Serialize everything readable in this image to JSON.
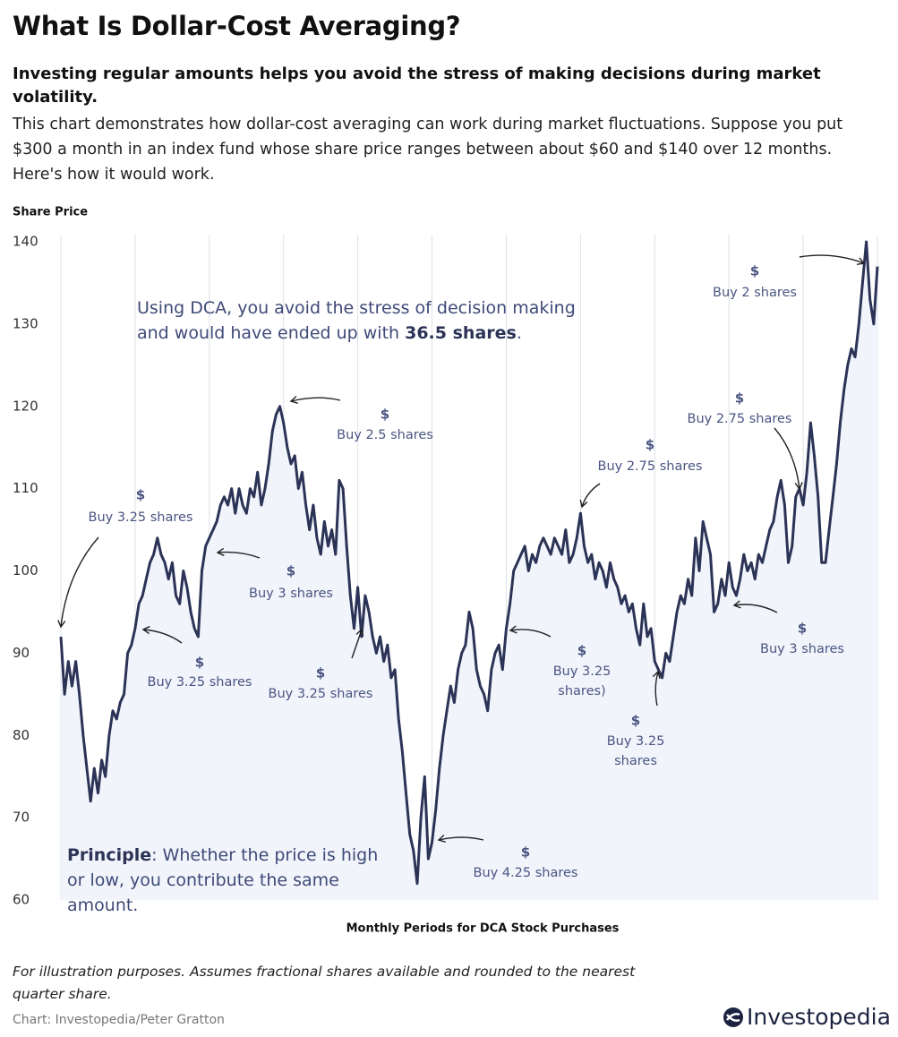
{
  "chart_data": {
    "type": "line",
    "title": "What Is Dollar-Cost Averaging?",
    "subtitle": "Investing regular amounts helps you avoid the stress of making decisions during market volatility.",
    "description": "This chart demonstrates how dollar-cost averaging can work during market fluctuations. Suppose you put $300 a month in an index fund whose share price ranges between about $60 and $140 over 12 months. Here's how it would work.",
    "y_label": "Share Price",
    "x_label": "Monthly Periods for DCA Stock Purchases",
    "note": "For illustration purposes. Assumes fractional shares available and rounded to the nearest quarter share.",
    "credit": "Chart: Investopedia/Peter Gratton",
    "brand": "Investopedia",
    "grid": "x",
    "xlim": [
      0,
      220
    ],
    "xticks": [
      0,
      20,
      40,
      60,
      80,
      100,
      120,
      140,
      160,
      180,
      200,
      220
    ],
    "ylim": [
      60,
      140
    ],
    "yticks": [
      60,
      70,
      80,
      90,
      100,
      110,
      120,
      130,
      140
    ],
    "x": [
      0,
      1,
      2,
      3,
      4,
      5,
      6,
      7,
      8,
      9,
      10,
      11,
      12,
      13,
      14,
      15,
      16,
      17,
      18,
      19,
      20,
      21,
      22,
      23,
      24,
      25,
      26,
      27,
      28,
      29,
      30,
      31,
      32,
      33,
      34,
      35,
      36,
      37,
      38,
      39,
      40,
      41,
      42,
      43,
      44,
      45,
      46,
      47,
      48,
      49,
      50,
      51,
      52,
      53,
      54,
      55,
      56,
      57,
      58,
      59,
      60,
      61,
      62,
      63,
      64,
      65,
      66,
      67,
      68,
      69,
      70,
      71,
      72,
      73,
      74,
      75,
      76,
      77,
      78,
      79,
      80,
      81,
      82,
      83,
      84,
      85,
      86,
      87,
      88,
      89,
      90,
      91,
      92,
      93,
      94,
      95,
      96,
      97,
      98,
      99,
      100,
      101,
      102,
      103,
      104,
      105,
      106,
      107,
      108,
      109,
      110,
      111,
      112,
      113,
      114,
      115,
      116,
      117,
      118,
      119,
      120,
      121,
      122,
      123,
      124,
      125,
      126,
      127,
      128,
      129,
      130,
      131,
      132,
      133,
      134,
      135,
      136,
      137,
      138,
      139,
      140,
      141,
      142,
      143,
      144,
      145,
      146,
      147,
      148,
      149,
      150,
      151,
      152,
      153,
      154,
      155,
      156,
      157,
      158,
      159,
      160,
      161,
      162,
      163,
      164,
      165,
      166,
      167,
      168,
      169,
      170,
      171,
      172,
      173,
      174,
      175,
      176,
      177,
      178,
      179,
      180,
      181,
      182,
      183,
      184,
      185,
      186,
      187,
      188,
      189,
      190,
      191,
      192,
      193,
      194,
      195,
      196,
      197,
      198,
      199,
      200,
      201,
      202,
      203,
      204,
      205,
      206,
      207,
      208,
      209,
      210,
      211,
      212,
      213,
      214,
      215,
      216,
      217,
      218,
      219,
      220
    ],
    "series": [
      {
        "name": "Share Price",
        "color": "#2b3356",
        "area_color": "#f1f4fb",
        "values": [
          92,
          85,
          89,
          86,
          89,
          85,
          80,
          76,
          72,
          76,
          73,
          77,
          75,
          80,
          83,
          82,
          84,
          85,
          90,
          91,
          93,
          96,
          97,
          99,
          101,
          102,
          104,
          102,
          101,
          99,
          101,
          97,
          96,
          100,
          98,
          95,
          93,
          92,
          100,
          103,
          104,
          105,
          106,
          108,
          109,
          108,
          110,
          107,
          110,
          108,
          107,
          110,
          109,
          112,
          108,
          110,
          113,
          117,
          119,
          120,
          118,
          115,
          113,
          114,
          110,
          112,
          108,
          105,
          108,
          104,
          102,
          106,
          103,
          105,
          102,
          111,
          110,
          103,
          97,
          93,
          98,
          92,
          97,
          95,
          92,
          90,
          92,
          89,
          91,
          87,
          88,
          82,
          78,
          73,
          68,
          66,
          62,
          70,
          75,
          65,
          67,
          71,
          76,
          80,
          83,
          86,
          84,
          88,
          90,
          91,
          95,
          93,
          88,
          86,
          85,
          83,
          88,
          90,
          91,
          88,
          93,
          96,
          100,
          101,
          102,
          103,
          100,
          102,
          101,
          103,
          104,
          103,
          102,
          104,
          103,
          102,
          105,
          101,
          102,
          104,
          107,
          103,
          101,
          102,
          99,
          101,
          100,
          98,
          101,
          99,
          98,
          96,
          97,
          95,
          96,
          93,
          91,
          96,
          92,
          93,
          89,
          88,
          87,
          90,
          89,
          92,
          95,
          97,
          96,
          99,
          97,
          104,
          100,
          106,
          104,
          102,
          95,
          96,
          99,
          97,
          101,
          98,
          97,
          99,
          102,
          100,
          101,
          99,
          102,
          101,
          103,
          105,
          106,
          109,
          111,
          108,
          101,
          103,
          109,
          110,
          108,
          112,
          118,
          114,
          109,
          101,
          101,
          105,
          109,
          113,
          118,
          122,
          125,
          127,
          126,
          130,
          135,
          140,
          133,
          130,
          137
        ]
      }
    ],
    "annotations": [
      {
        "symbol": "$",
        "lines": [
          "Buy 3.25 shares"
        ]
      },
      {
        "symbol": "$",
        "lines": [
          "Buy 3.25 shares"
        ]
      },
      {
        "symbol": "$",
        "lines": [
          "Buy 3 shares"
        ]
      },
      {
        "symbol": "$",
        "lines": [
          "Buy 2.5 shares"
        ]
      },
      {
        "symbol": "$",
        "lines": [
          "Buy 3.25 shares"
        ]
      },
      {
        "symbol": "$",
        "lines": [
          "Buy 4.25 shares"
        ]
      },
      {
        "symbol": "$",
        "lines": [
          "Buy 3.25",
          "shares)"
        ]
      },
      {
        "symbol": "$",
        "lines": [
          "Buy 3.25",
          "shares"
        ]
      },
      {
        "symbol": "$",
        "lines": [
          "Buy 2.75 shares"
        ]
      },
      {
        "symbol": "$",
        "lines": [
          "Buy 2.75 shares"
        ]
      },
      {
        "symbol": "$",
        "lines": [
          "Buy 3 shares"
        ]
      },
      {
        "symbol": "$",
        "lines": [
          "Buy 2 shares"
        ]
      }
    ],
    "callouts": [
      {
        "lines": [
          [
            {
              "text": "Using DCA, you avoid the stress of decision making"
            }
          ],
          [
            {
              "text": "and would have ended up with "
            },
            {
              "text": "36.5 shares",
              "bold": true
            },
            {
              "text": "."
            }
          ]
        ]
      },
      {
        "lines": [
          [
            {
              "text": "Principle",
              "bold": true
            },
            {
              "text": ": Whether the price is high"
            }
          ],
          [
            {
              "text": "or low, you contribute the same"
            }
          ],
          [
            {
              "text": "amount."
            }
          ]
        ]
      }
    ]
  }
}
